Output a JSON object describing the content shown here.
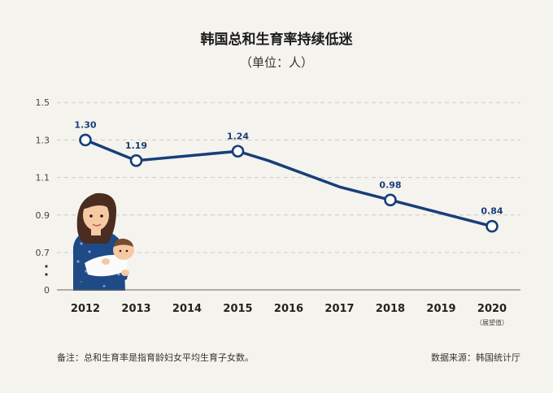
{
  "title": "韩国总和生育率持续低迷",
  "subtitle": "（单位：人）",
  "note": "备注：总和生育率是指育龄妇女平均生育子女数。",
  "source": "数据来源：韩国统计厅",
  "chart_data": {
    "type": "line",
    "title": "韩国总和生育率持续低迷",
    "ylabel": "",
    "xlabel": "",
    "y_ticks": [
      "0",
      "0.7",
      "0.9",
      "1.1",
      "1.3",
      "1.5"
    ],
    "categories": [
      "2012",
      "2013",
      "2014",
      "2015",
      "2016",
      "2017",
      "2018",
      "2019",
      "2020"
    ],
    "category_notes": {
      "2020": "（展望值）"
    },
    "x": [
      2012,
      2013,
      2015,
      2015.6,
      2017,
      2018,
      2020
    ],
    "values": [
      1.3,
      1.19,
      1.24,
      1.19,
      1.05,
      0.98,
      0.84
    ],
    "labeled_points": [
      {
        "x": 2012,
        "label": "1.30"
      },
      {
        "x": 2013,
        "label": "1.19"
      },
      {
        "x": 2015,
        "label": "1.24"
      },
      {
        "x": 2018,
        "label": "0.98"
      },
      {
        "x": 2020,
        "label": "0.84"
      }
    ],
    "ylim": [
      0,
      1.5
    ],
    "axis_break": true,
    "grid": true,
    "line_color": "#173f78",
    "marker_fill": "#ffffff"
  }
}
